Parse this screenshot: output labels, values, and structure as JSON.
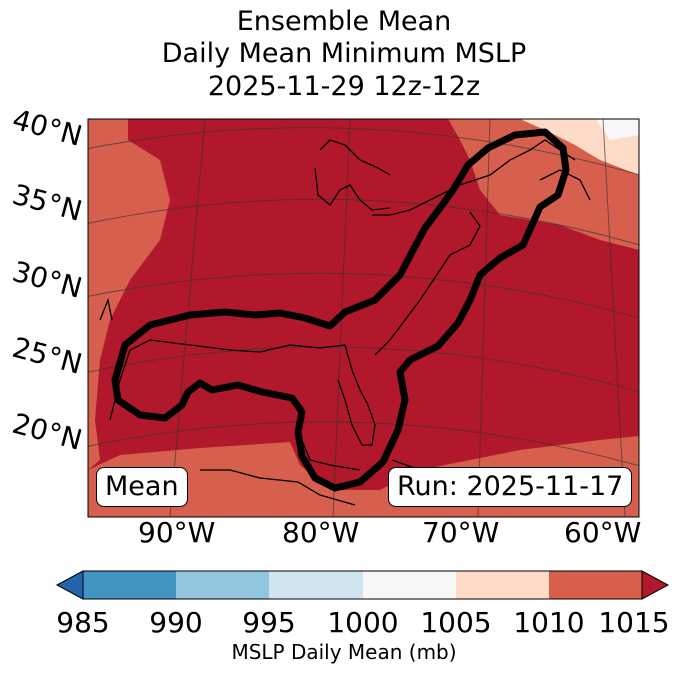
{
  "title": {
    "line1": "Ensemble Mean",
    "line2": "Daily Mean Minimum MSLP",
    "line3": "2025-11-29 12z-12z"
  },
  "map": {
    "lat_labels": [
      "40°N",
      "35°N",
      "30°N",
      "25°N",
      "20°N"
    ],
    "lon_labels": [
      "90°W",
      "80°W",
      "70°W",
      "60°W"
    ],
    "mean_label": "Mean",
    "run_label": "Run: 2025-11-17",
    "colors": {
      "range_1010_1015": "#b2182b",
      "range_1005_1010": "#d6604d",
      "range_1000_1005": "#fddbc7",
      "range_995_1000": "#f7f7f7",
      "outline": "#000000"
    }
  },
  "colorbar": {
    "ticks": [
      "985",
      "990",
      "995",
      "1000",
      "1005",
      "1010",
      "1015"
    ],
    "colors": [
      "#2166ac",
      "#4393c3",
      "#92c5de",
      "#d1e5f0",
      "#f7f7f7",
      "#fddbc7",
      "#d6604d",
      "#b2182b"
    ],
    "label": "MSLP Daily Mean (mb)"
  }
}
